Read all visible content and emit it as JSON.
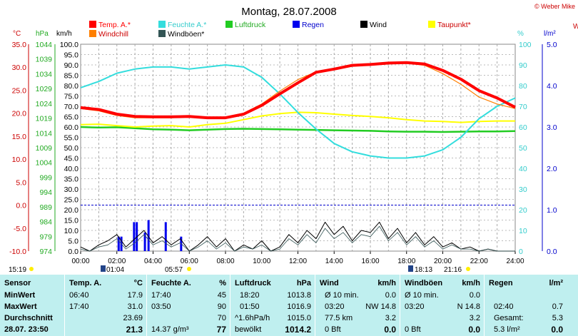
{
  "header": {
    "title": "Montag, 28.07.2008",
    "credit": "© Weber Mike",
    "right_edge": "W"
  },
  "legend": [
    {
      "label": "Temp. A.*",
      "color": "#ff0000",
      "text_color": "#ff0000"
    },
    {
      "label": "Feuchte A.*",
      "color": "#33dddd",
      "text_color": "#33cccc"
    },
    {
      "label": "Luftdruck",
      "color": "#22cc22",
      "text_color": "#22aa22"
    },
    {
      "label": "Regen",
      "color": "#0000ee",
      "text_color": "#0000cc"
    },
    {
      "label": "Wind",
      "color": "#000000",
      "text_color": "#000000"
    },
    {
      "label": "Taupunkt*",
      "color": "#ffff00",
      "text_color": "#cc0000"
    },
    {
      "label": "Windchill",
      "color": "#ff7f00",
      "text_color": "#cc0000"
    },
    {
      "label": "Windböen*",
      "color": "#335555",
      "text_color": "#000000"
    }
  ],
  "axis_units": {
    "temp": "°C",
    "pressure": "hPa",
    "wind": "km/h",
    "humidity": "%",
    "rain": "l/m²"
  },
  "sun": {
    "sunrise_label": "05:57",
    "sunset_label": "21:16",
    "moonrise_label": "01:04",
    "moonset_label": "18:13",
    "left_time_label": "15:19"
  },
  "chart_data": {
    "type": "line",
    "title": "Montag, 28.07.2008",
    "x_label": "",
    "x_ticks": [
      "00:00",
      "02:00",
      "04:00",
      "06:00",
      "08:00",
      "10:00",
      "12:00",
      "14:00",
      "16:00",
      "18:00",
      "20:00",
      "22:00",
      "24:00"
    ],
    "axes": {
      "temp_c": {
        "ylim": [
          -10,
          35
        ],
        "ticks": [
          35,
          30,
          25,
          20,
          15,
          10,
          5,
          0,
          -5,
          -10
        ],
        "tick_labels": [
          "35.0",
          "30.0",
          "25.0",
          "20.0",
          "15.0",
          "10.0",
          "5.0",
          "0.0",
          "-5.0",
          "-10.0"
        ]
      },
      "pressure_hpa": {
        "ylim": [
          974,
          1044
        ],
        "tick_labels": [
          "1044",
          "1039",
          "1034",
          "1029",
          "1024",
          "1019",
          "1014",
          "1009",
          "1004",
          "999",
          "994",
          "989",
          "984",
          "979",
          "974"
        ]
      },
      "wind_kmh": {
        "ylim": [
          0,
          100
        ],
        "tick_labels": [
          "100.0",
          "95.0",
          "90.0",
          "85.0",
          "80.0",
          "75.0",
          "70.0",
          "65.0",
          "60.0",
          "55.0",
          "50.0",
          "45.0",
          "40.0",
          "35.0",
          "30.0",
          "25.0",
          "20.0",
          "15.0",
          "10.0",
          "5.0",
          "0.0"
        ]
      },
      "humidity_pct": {
        "ylim": [
          0,
          100
        ],
        "tick_labels": [
          "100",
          "90",
          "80",
          "70",
          "60",
          "50",
          "40",
          "30",
          "20",
          "10",
          "0"
        ]
      },
      "rain_lm2": {
        "ylim": [
          0,
          5
        ],
        "tick_labels": [
          "5.0",
          "4.0",
          "3.0",
          "2.0",
          "1.0",
          "0.0"
        ]
      }
    },
    "grid": true,
    "series": [
      {
        "name": "Temp. A.*",
        "axis": "temp_c",
        "x": [
          0,
          1,
          2,
          3,
          4,
          5,
          6,
          7,
          8,
          9,
          10,
          11,
          12,
          13,
          14,
          15,
          16,
          17,
          18,
          19,
          20,
          21,
          22,
          23,
          24
        ],
        "values": [
          21.2,
          20.8,
          19.8,
          19.3,
          19.2,
          19.2,
          19.3,
          19.0,
          19.0,
          19.8,
          21.7,
          24.2,
          26.6,
          28.9,
          29.6,
          30.4,
          30.6,
          30.9,
          31.0,
          30.7,
          29.3,
          27.4,
          24.9,
          23.3,
          21.3
        ]
      },
      {
        "name": "Windchill",
        "axis": "temp_c",
        "x": [
          0,
          1,
          2,
          3,
          4,
          5,
          6,
          7,
          8,
          9,
          10,
          11,
          12,
          13,
          14,
          15,
          16,
          17,
          18,
          19,
          20,
          21,
          22,
          23,
          24
        ],
        "values": [
          21.0,
          20.5,
          19.5,
          19.0,
          19.0,
          19.0,
          19.2,
          18.9,
          18.9,
          20.0,
          22.0,
          24.8,
          27.3,
          29.0,
          29.5,
          30.2,
          30.5,
          30.7,
          30.9,
          30.4,
          28.6,
          26.3,
          23.5,
          22.0,
          21.0
        ]
      },
      {
        "name": "Taupunkt*",
        "axis": "temp_c",
        "x": [
          0,
          1,
          2,
          3,
          4,
          5,
          6,
          7,
          8,
          9,
          10,
          11,
          12,
          13,
          14,
          15,
          16,
          17,
          18,
          19,
          20,
          21,
          22,
          23,
          24
        ],
        "values": [
          17.5,
          17.6,
          17.3,
          17.0,
          17.2,
          17.3,
          17.0,
          17.5,
          17.8,
          18.6,
          19.4,
          19.9,
          20.2,
          20.1,
          19.8,
          19.5,
          19.3,
          19.0,
          18.6,
          18.3,
          18.2,
          18.0,
          18.2,
          18.3,
          18.3
        ]
      },
      {
        "name": "Feuchte A.*",
        "axis": "humidity_pct",
        "x": [
          0,
          1,
          2,
          3,
          4,
          5,
          6,
          7,
          8,
          9,
          10,
          11,
          12,
          13,
          14,
          15,
          16,
          17,
          18,
          19,
          20,
          21,
          22,
          23,
          24
        ],
        "values": [
          79,
          82,
          86,
          88,
          89,
          89,
          88,
          89,
          90,
          89,
          84,
          76,
          67,
          59,
          52,
          48,
          46,
          45,
          45,
          46,
          49,
          55,
          64,
          70,
          74
        ]
      },
      {
        "name": "Luftdruck",
        "axis": "pressure_hpa",
        "x": [
          0,
          1,
          2,
          3,
          4,
          5,
          6,
          7,
          8,
          9,
          10,
          11,
          12,
          13,
          14,
          15,
          16,
          17,
          18,
          19,
          20,
          21,
          22,
          23,
          24
        ],
        "values": [
          1016.0,
          1015.8,
          1015.9,
          1015.6,
          1015.2,
          1015.1,
          1014.9,
          1015.1,
          1015.3,
          1015.4,
          1015.3,
          1015.2,
          1015.1,
          1015.0,
          1014.9,
          1014.8,
          1014.7,
          1014.5,
          1014.4,
          1014.4,
          1014.3,
          1014.4,
          1014.5,
          1014.5,
          1014.6
        ]
      },
      {
        "name": "Wind",
        "axis": "wind_kmh",
        "x": [
          0,
          0.5,
          1,
          1.5,
          2,
          2.5,
          3,
          3.5,
          4,
          4.5,
          5,
          5.5,
          6,
          6.5,
          7,
          7.5,
          8,
          8.5,
          9,
          9.5,
          10,
          10.5,
          11,
          11.5,
          12,
          12.5,
          13,
          13.5,
          14,
          14.5,
          15,
          15.5,
          16,
          16.5,
          17,
          17.5,
          18,
          18.5,
          19,
          19.5,
          20,
          20.5,
          21,
          21.5,
          22,
          22.5,
          23,
          23.5,
          24
        ],
        "values": [
          2,
          0,
          3,
          5,
          8,
          2,
          6,
          10,
          4,
          7,
          3,
          6,
          0,
          3,
          7,
          2,
          6,
          0,
          3,
          1,
          5,
          0,
          2,
          8,
          4,
          10,
          6,
          14,
          8,
          12,
          5,
          10,
          9,
          14,
          6,
          11,
          4,
          9,
          3,
          7,
          2,
          4,
          1,
          2,
          0,
          1,
          0,
          0,
          0
        ]
      },
      {
        "name": "Windböen*",
        "axis": "wind_kmh",
        "x": [
          0,
          0.5,
          1,
          1.5,
          2,
          2.5,
          3,
          3.5,
          4,
          4.5,
          5,
          5.5,
          6,
          6.5,
          7,
          7.5,
          8,
          8.5,
          9,
          9.5,
          10,
          10.5,
          11,
          11.5,
          12,
          12.5,
          13,
          13.5,
          14,
          14.5,
          15,
          15.5,
          16,
          16.5,
          17,
          17.5,
          18,
          18.5,
          19,
          19.5,
          20,
          20.5,
          21,
          21.5,
          22,
          22.5,
          23,
          23.5,
          24
        ],
        "values": [
          1,
          0,
          2,
          3,
          6,
          1,
          4,
          8,
          3,
          5,
          2,
          4,
          0,
          2,
          5,
          1,
          4,
          0,
          2,
          1,
          3,
          0,
          1,
          6,
          3,
          8,
          4,
          11,
          6,
          9,
          4,
          8,
          7,
          12,
          5,
          9,
          3,
          7,
          2,
          5,
          1,
          3,
          1,
          1,
          0,
          1,
          0,
          0,
          0
        ]
      },
      {
        "name": "Regen",
        "axis": "rain_lm2",
        "type": "bar",
        "x": [
          2.1,
          2.25,
          2.95,
          3.1,
          3.55,
          3.75,
          4.7,
          5.55
        ],
        "values": [
          0.35,
          0.35,
          0.7,
          0.7,
          0.45,
          0.75,
          0.7,
          0.35
        ]
      }
    ]
  },
  "table": {
    "col1": {
      "header": "Sensor",
      "rows": [
        "MinWert",
        "MaxWert",
        "Durchschnitt",
        "28.07. 23:50"
      ]
    },
    "temp": {
      "header": "Temp. A.",
      "unit": "°C",
      "rows": [
        [
          "06:40",
          "17.9"
        ],
        [
          "17:40",
          "31.0"
        ],
        [
          "",
          "23.69"
        ],
        [
          "",
          "21.3"
        ]
      ]
    },
    "hum": {
      "header": "Feuchte A.",
      "unit": "%",
      "rows": [
        [
          "17:40",
          "45"
        ],
        [
          "03:50",
          "90"
        ],
        [
          "",
          "70"
        ],
        [
          "14.37 g/m³",
          "77"
        ]
      ]
    },
    "press": {
      "header": "Luftdruck",
      "unit": "hPa",
      "rows": [
        [
          "18:20",
          "1013.8"
        ],
        [
          "01:50",
          "1016.9"
        ],
        [
          "^1.6hPa/h",
          "1015.0"
        ],
        [
          "bewölkt",
          "1014.2"
        ]
      ]
    },
    "wind": {
      "header": "Wind",
      "unit": "km/h",
      "rows": [
        [
          "Ø 10 min.",
          "0.0"
        ],
        [
          "03:20",
          "NW 14.8"
        ],
        [
          "77.5 km",
          "3.2"
        ],
        [
          "0 Bft",
          "0.0"
        ]
      ]
    },
    "gust": {
      "header": "Windböen",
      "unit": "km/h",
      "rows": [
        [
          "Ø 10 min.",
          "0.0"
        ],
        [
          "03:20",
          "N 14.8"
        ],
        [
          "",
          "3.2"
        ],
        [
          "0 Bft",
          "0.0"
        ]
      ]
    },
    "rain": {
      "header": "Regen",
      "unit": "l/m²",
      "rows": [
        [
          "",
          ""
        ],
        [
          "02:40",
          "0.7"
        ],
        [
          "Gesamt:",
          "5.3"
        ],
        [
          "5.3 l/m²",
          "0.0"
        ]
      ]
    }
  }
}
